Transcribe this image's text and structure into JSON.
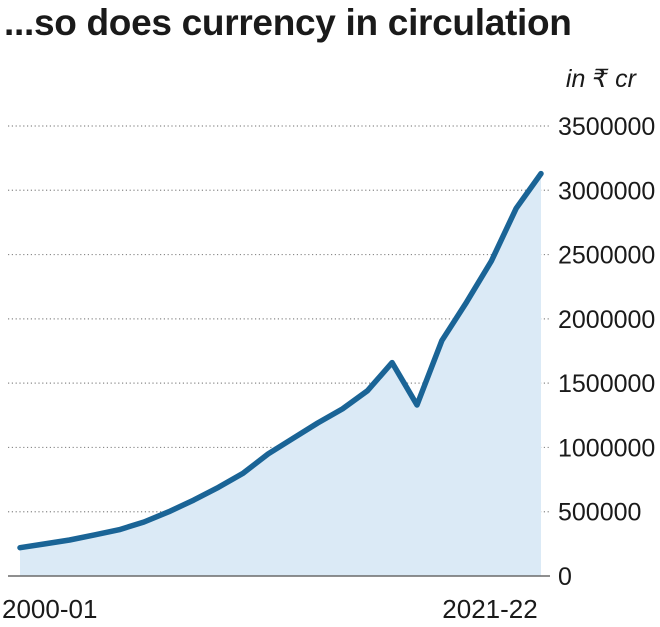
{
  "chart_data": {
    "type": "area",
    "title": "...so does currency in circulation",
    "unit_label": "in ₹ cr",
    "x_tick_labels": [
      "2000-01",
      "2021-22"
    ],
    "x": [
      "2000-01",
      "2001-02",
      "2002-03",
      "2003-04",
      "2004-05",
      "2005-06",
      "2006-07",
      "2007-08",
      "2008-09",
      "2009-10",
      "2010-11",
      "2011-12",
      "2012-13",
      "2013-14",
      "2014-15",
      "2015-16",
      "2016-17",
      "2017-18",
      "2018-19",
      "2019-20",
      "2020-21",
      "2021-22"
    ],
    "series": [
      {
        "values": [
          220000,
          250000,
          280000,
          320000,
          360000,
          420000,
          500000,
          590000,
          690000,
          800000,
          950000,
          1070000,
          1190000,
          1300000,
          1440000,
          1660000,
          1330000,
          1830000,
          2130000,
          2450000,
          2860000,
          3130000
        ],
        "line_color": "#1a6496",
        "fill_color": "#dbeaf6"
      }
    ],
    "y_ticks": [
      0,
      500000,
      1000000,
      1500000,
      2000000,
      2500000,
      3000000,
      3500000
    ],
    "ylim": [
      0,
      3500000
    ],
    "grid": "horizontal-dotted"
  }
}
